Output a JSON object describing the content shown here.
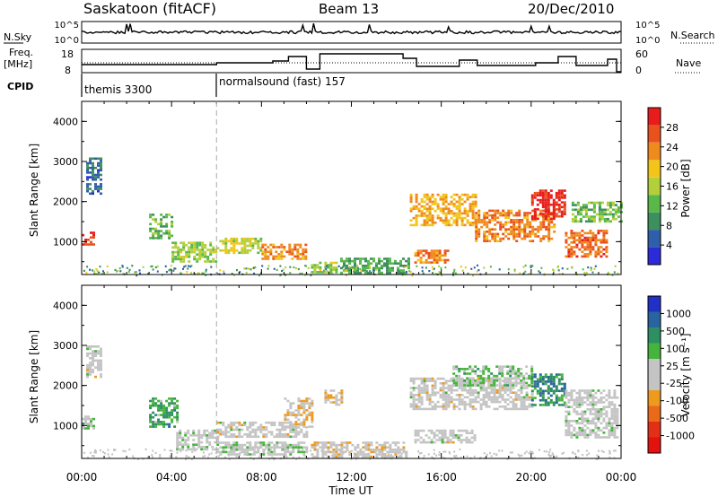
{
  "header": {
    "station": "Saskatoon (fitACF)",
    "beam": "Beam 13",
    "date": "20/Dec/2010"
  },
  "noise_panel": {
    "left_label": "N.Sky",
    "right_label": "N.Search",
    "right_legend_style": "dotted",
    "tick_top": "10^5",
    "tick_bottom": "10^0"
  },
  "freq_panel": {
    "left_label_line1": "Freq.",
    "left_label_line2": "[MHz]",
    "right_label": "Nave",
    "right_legend_style": "dotted",
    "left_ticks": [
      "18",
      "8"
    ],
    "right_ticks": [
      "60",
      "0"
    ]
  },
  "cpid_panel": {
    "label": "CPID",
    "programs": [
      {
        "name": "themis 3300",
        "start_hour": 0.0
      },
      {
        "name": "normalsound (fast) 157",
        "start_hour": 6.0
      }
    ]
  },
  "time_axis": {
    "label": "Time UT",
    "ticks": [
      "00:00",
      "04:00",
      "08:00",
      "12:00",
      "16:00",
      "20:00",
      "00:00"
    ],
    "range_hours": [
      0,
      24
    ],
    "program_boundary_hour": 6.0
  },
  "colors": {
    "power": [
      "#2b2bd9",
      "#2f5fa8",
      "#3d8f5e",
      "#58b84a",
      "#b3cf3a",
      "#f2c518",
      "#ef8a1d",
      "#e9521d",
      "#e81c1c"
    ],
    "velocity": [
      "#2131c5",
      "#2864a0",
      "#2e8f62",
      "#45b43a",
      "#c4c4c4",
      "#c4c4c4",
      "#ee9a1e",
      "#ea6a1a",
      "#e32f16",
      "#e3120f"
    ]
  },
  "chart_data": [
    {
      "type": "heatmap",
      "panel": "power",
      "xlabel": "Time UT",
      "ylabel": "Slant Range [km]",
      "xlim_hours": [
        0,
        24
      ],
      "ylim_km": [
        180,
        4500
      ],
      "yticks": [
        "1000",
        "2000",
        "3000",
        "4000"
      ],
      "colorbar": {
        "label": "Power [dB]",
        "ticks": [
          "4",
          "8",
          "12",
          "16",
          "20",
          "24",
          "28"
        ],
        "range": [
          0,
          30
        ]
      },
      "echo_regions": [
        {
          "t0": 0.0,
          "t1": 0.5,
          "r0": 950,
          "r1": 1250,
          "level": 26
        },
        {
          "t0": 0.2,
          "t1": 0.8,
          "r0": 2200,
          "r1": 3100,
          "level": 6
        },
        {
          "t0": 3.0,
          "t1": 4.0,
          "r0": 1100,
          "r1": 1700,
          "level": 12
        },
        {
          "t0": 4.0,
          "t1": 6.0,
          "r0": 500,
          "r1": 1000,
          "level": 14
        },
        {
          "t0": 6.0,
          "t1": 8.0,
          "r0": 700,
          "r1": 1100,
          "level": 16
        },
        {
          "t0": 8.0,
          "t1": 10.0,
          "r0": 550,
          "r1": 950,
          "level": 22
        },
        {
          "t0": 10.2,
          "t1": 11.3,
          "r0": 250,
          "r1": 500,
          "level": 14
        },
        {
          "t0": 11.5,
          "t1": 14.5,
          "r0": 250,
          "r1": 600,
          "level": 10
        },
        {
          "t0": 14.6,
          "t1": 17.5,
          "r0": 1400,
          "r1": 2200,
          "level": 20
        },
        {
          "t0": 14.8,
          "t1": 16.3,
          "r0": 500,
          "r1": 800,
          "level": 22
        },
        {
          "t0": 17.5,
          "t1": 21.0,
          "r0": 1000,
          "r1": 1800,
          "level": 22
        },
        {
          "t0": 20.0,
          "t1": 21.5,
          "r0": 1600,
          "r1": 2300,
          "level": 28
        },
        {
          "t0": 21.5,
          "t1": 23.3,
          "r0": 650,
          "r1": 1300,
          "level": 24
        },
        {
          "t0": 21.8,
          "t1": 24.0,
          "r0": 1500,
          "r1": 2000,
          "level": 12
        }
      ]
    },
    {
      "type": "heatmap",
      "panel": "velocity",
      "xlabel": "Time UT",
      "ylabel": "Slant Range [km]",
      "xlim_hours": [
        0,
        24
      ],
      "ylim_km": [
        180,
        4500
      ],
      "yticks": [
        "1000",
        "2000",
        "3000",
        "4000"
      ],
      "colorbar": {
        "label": "Velocity [m s⁻¹]",
        "ticks": [
          "1000",
          "500",
          "100",
          "25",
          "-25",
          "-100",
          "-500",
          "-1000"
        ],
        "range": [
          -1500,
          1500
        ]
      },
      "echo_regions": [
        {
          "t0": 0.0,
          "t1": 0.5,
          "r0": 950,
          "r1": 1250,
          "level": 300
        },
        {
          "t0": 0.2,
          "t1": 0.8,
          "r0": 2200,
          "r1": 3000,
          "level": 0
        },
        {
          "t0": 3.0,
          "t1": 4.2,
          "r0": 1000,
          "r1": 1700,
          "level": 600
        },
        {
          "t0": 4.2,
          "t1": 6.0,
          "r0": 400,
          "r1": 900,
          "level": 100
        },
        {
          "t0": 6.0,
          "t1": 10.0,
          "r0": 700,
          "r1": 1100,
          "level": 0
        },
        {
          "t0": 6.0,
          "t1": 10.0,
          "r0": 300,
          "r1": 600,
          "level": 100
        },
        {
          "t0": 9.0,
          "t1": 10.2,
          "r0": 1000,
          "r1": 1700,
          "level": -150
        },
        {
          "t0": 10.2,
          "t1": 14.5,
          "r0": 200,
          "r1": 600,
          "level": -80
        },
        {
          "t0": 10.8,
          "t1": 11.6,
          "r0": 1500,
          "r1": 1900,
          "level": -300
        },
        {
          "t0": 14.6,
          "t1": 20.0,
          "r0": 1400,
          "r1": 2200,
          "level": 0
        },
        {
          "t0": 16.5,
          "t1": 20.0,
          "r0": 2000,
          "r1": 2500,
          "level": 300
        },
        {
          "t0": 14.8,
          "t1": 17.5,
          "r0": 600,
          "r1": 900,
          "level": 0
        },
        {
          "t0": 20.0,
          "t1": 21.5,
          "r0": 1500,
          "r1": 2300,
          "level": 800
        },
        {
          "t0": 21.5,
          "t1": 23.8,
          "r0": 700,
          "r1": 1900,
          "level": 50
        }
      ]
    }
  ]
}
